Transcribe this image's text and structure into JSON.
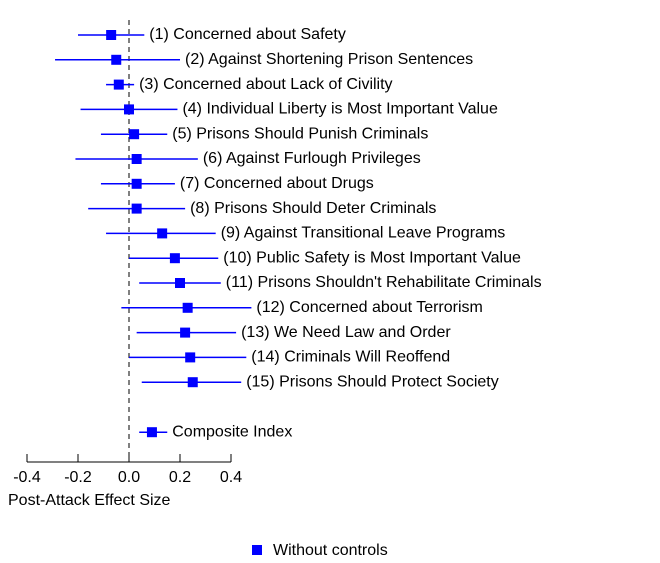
{
  "chart_data": {
    "type": "dot",
    "categories": [
      "(1) Concerned about Safety",
      "(2) Against Shortening Prison Sentences",
      "(3) Concerned about Lack of Civility",
      "(4) Individual Liberty is Most Important Value",
      "(5) Prisons Should Punish Criminals",
      "(6)  Against Furlough Privileges",
      "(7) Concerned about Drugs",
      "(8) Prisons Should Deter Criminals",
      "(9) Against Transitional Leave Programs",
      "(10) Public Safety is Most Important Value",
      "(11) Prisons Shouldn't Rehabilitate Criminals",
      "(12) Concerned about Terrorism",
      "(13) We Need Law and Order",
      "(14) Criminals Will Reoffend",
      "(15) Prisons Should Protect Society",
      "Composite Index"
    ],
    "series": [
      {
        "name": "Without controls",
        "color": "#0000ff",
        "values": [
          -0.07,
          -0.05,
          -0.04,
          0.0,
          0.02,
          0.03,
          0.03,
          0.03,
          0.13,
          0.18,
          0.2,
          0.23,
          0.22,
          0.24,
          0.25,
          0.09
        ],
        "lower": [
          -0.2,
          -0.29,
          -0.09,
          -0.19,
          -0.11,
          -0.21,
          -0.11,
          -0.16,
          -0.09,
          0.0,
          0.04,
          -0.03,
          0.03,
          0.0,
          0.05,
          0.04
        ],
        "upper": [
          0.06,
          0.2,
          0.02,
          0.19,
          0.15,
          0.27,
          0.18,
          0.22,
          0.34,
          0.35,
          0.36,
          0.48,
          0.42,
          0.46,
          0.44,
          0.15
        ]
      }
    ],
    "xlabel": "Post-Attack Effect Size",
    "xlim": [
      -0.4,
      0.4
    ],
    "xticks": [
      -0.4,
      -0.2,
      {
        "value": 0,
        "label": "0.0"
      },
      0.2,
      0.4
    ],
    "reference_line": 0,
    "legend": "bottom"
  }
}
